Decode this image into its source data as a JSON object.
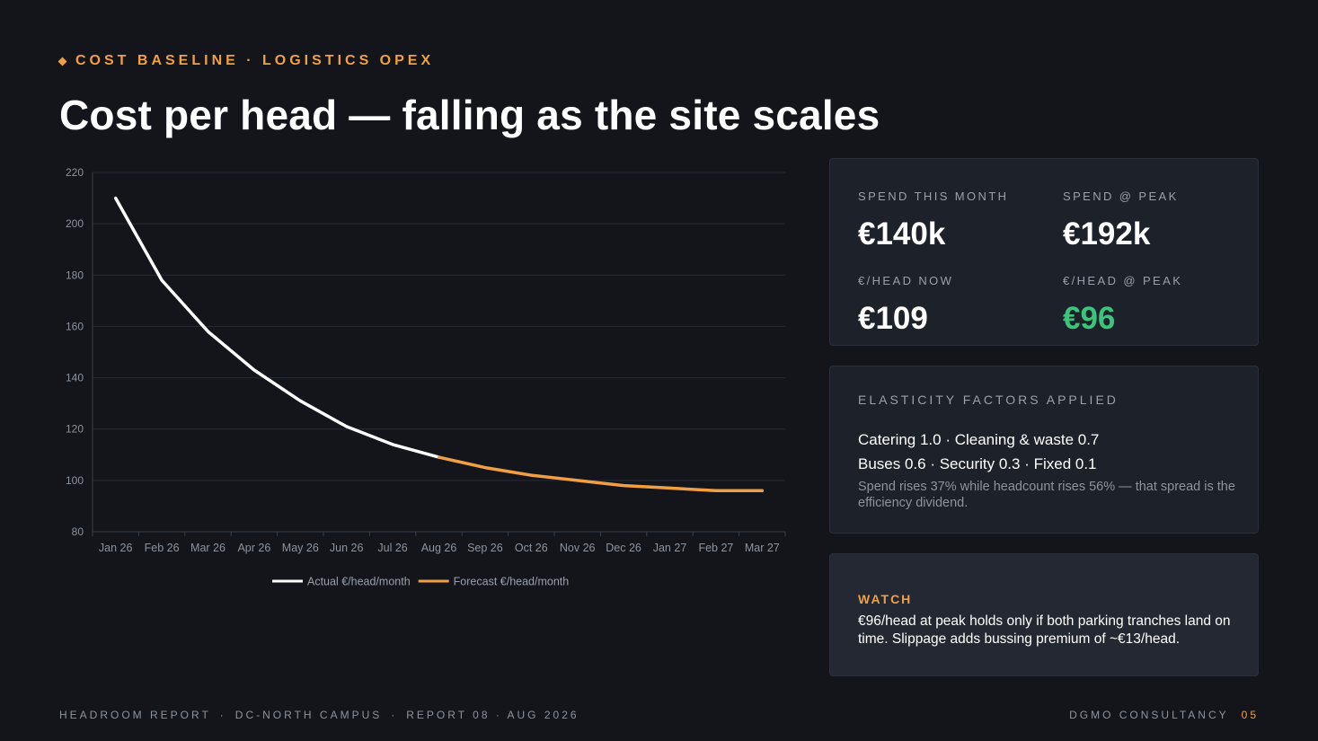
{
  "header": {
    "eyebrow": "COST BASELINE · LOGISTICS OPEX",
    "title": "Cost per head — falling as the site scales"
  },
  "kpis": [
    {
      "label": "SPEND THIS MONTH",
      "value": "€140k"
    },
    {
      "label": "SPEND @ PEAK",
      "value": "€192k"
    },
    {
      "label": "€/HEAD NOW",
      "value": "€109"
    },
    {
      "label": "€/HEAD @ PEAK",
      "value": "€96",
      "color": "#3cc47c"
    }
  ],
  "elasticity": {
    "heading": "ELASTICITY FACTORS APPLIED",
    "line1": "Catering 1.0 · Cleaning & waste 0.7",
    "line2": "Buses 0.6 · Security 0.3 · Fixed 0.1",
    "note": "Spend rises 37% while headcount rises 56% — that spread is the efficiency dividend."
  },
  "watch": {
    "heading": "WATCH",
    "text": "€96/head at peak holds only if both parking tranches land on time. Slippage adds bussing premium of ~€13/head."
  },
  "footer": {
    "items": [
      "HEADROOM REPORT",
      "DC-NORTH CAMPUS",
      "REPORT 08 · AUG 2026"
    ],
    "separator": "·",
    "company": "DGMO CONSULTANCY",
    "page": "05"
  },
  "chart_data": {
    "type": "line",
    "categories": [
      "Jan 26",
      "Feb 26",
      "Mar 26",
      "Apr 26",
      "May 26",
      "Jun 26",
      "Jul 26",
      "Aug 26",
      "Sep 26",
      "Oct 26",
      "Nov 26",
      "Dec 26",
      "Jan 27",
      "Feb 27",
      "Mar 27"
    ],
    "series": [
      {
        "name": "Actual €/head/month",
        "color": "#ffffff",
        "values": [
          210,
          178,
          158,
          143,
          131,
          121,
          114,
          109,
          null,
          null,
          null,
          null,
          null,
          null,
          null
        ]
      },
      {
        "name": "Forecast €/head/month",
        "color": "#f0a043",
        "values": [
          null,
          null,
          null,
          null,
          null,
          null,
          null,
          109,
          105,
          102,
          100,
          98,
          97,
          96,
          96
        ]
      }
    ],
    "yticks": [
      80,
      100,
      120,
      140,
      160,
      180,
      200,
      220
    ],
    "ylim": [
      80,
      220
    ],
    "grid": true,
    "legend": "bottom-center"
  }
}
